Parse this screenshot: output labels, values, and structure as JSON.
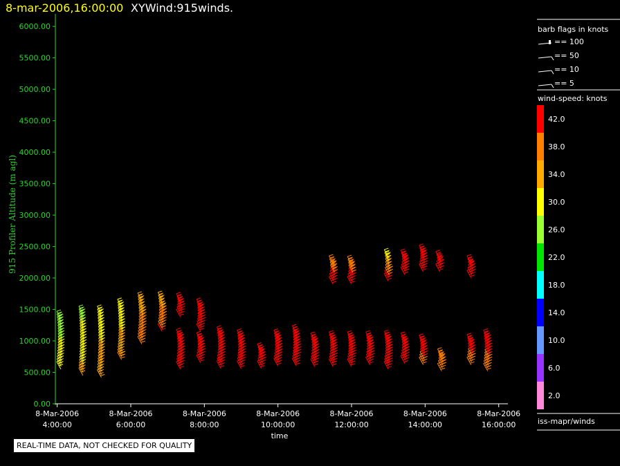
{
  "header": {
    "timestamp": "8-mar-2006,16:00:00",
    "product": "XYWind:915winds."
  },
  "legend": {
    "barb_title": "barb flags in knots",
    "barb_items": [
      "== 100",
      "== 50",
      "== 10",
      "== 5"
    ],
    "speed_title": "wind-speed: knots",
    "speed_scale": [
      {
        "label": "42.0",
        "color": "#ff0000"
      },
      {
        "label": "38.0",
        "color": "#ff7f00"
      },
      {
        "label": "34.0",
        "color": "#ffaa00"
      },
      {
        "label": "30.0",
        "color": "#ffff00"
      },
      {
        "label": "26.0",
        "color": "#99ff33"
      },
      {
        "label": "22.0",
        "color": "#00e600"
      },
      {
        "label": "18.0",
        "color": "#00ffff"
      },
      {
        "label": "14.0",
        "color": "#0000ff"
      },
      {
        "label": "10.0",
        "color": "#6699ff"
      },
      {
        "label": "6.0",
        "color": "#9933ff"
      },
      {
        "label": "2.0",
        "color": "#ff88dd"
      }
    ],
    "source": "iss-mapr/winds"
  },
  "disclaimer": "REAL-TIME DATA, NOT CHECKED FOR QUALITY",
  "chart_data": {
    "type": "scatter",
    "xlabel": "time",
    "ylabel": "915 Profiler Altitude (m agl)",
    "xlim": [
      3.95,
      16.25
    ],
    "ylim": [
      0,
      6200
    ],
    "yticks": [
      "0.00",
      "500.00",
      "1000.00",
      "1500.00",
      "2000.00",
      "2500.00",
      "3000.00",
      "3500.00",
      "4000.00",
      "4500.00",
      "5000.00",
      "5500.00",
      "6000.00"
    ],
    "xticks": [
      {
        "hour": 4,
        "date": "8-Mar-2006",
        "time": "4:00:00"
      },
      {
        "hour": 6,
        "date": "8-Mar-2006",
        "time": "6:00:00"
      },
      {
        "hour": 8,
        "date": "8-Mar-2006",
        "time": "8:00:00"
      },
      {
        "hour": 10,
        "date": "8-Mar-2006",
        "time": "10:00:00"
      },
      {
        "hour": 12,
        "date": "8-Mar-2006",
        "time": "12:00:00"
      },
      {
        "hour": 14,
        "date": "8-Mar-2006",
        "time": "14:00:00"
      },
      {
        "hour": 16,
        "date": "8-Mar-2006",
        "time": "16:00:00"
      }
    ],
    "profiles": [
      {
        "hour": 4.1,
        "bottom": 550,
        "top": 1350,
        "speed_bottom": 30,
        "speed_top": 26
      },
      {
        "hour": 4.7,
        "bottom": 450,
        "top": 1430,
        "speed_bottom": 33,
        "speed_top": 27
      },
      {
        "hour": 5.2,
        "bottom": 420,
        "top": 1430,
        "speed_bottom": 35,
        "speed_top": 29
      },
      {
        "hour": 5.75,
        "bottom": 700,
        "top": 1540,
        "speed_bottom": 36,
        "speed_top": 28
      },
      {
        "hour": 6.3,
        "bottom": 950,
        "top": 1640,
        "speed_bottom": 39,
        "speed_top": 34
      },
      {
        "hour": 6.85,
        "bottom": 1150,
        "top": 1650,
        "speed_bottom": 40,
        "speed_top": 34
      },
      {
        "hour": 7.35,
        "bottom": 550,
        "top": 1060,
        "speed_bottom": 42,
        "speed_top": 41
      },
      {
        "hour": 7.35,
        "bottom": 1380,
        "top": 1630,
        "speed_bottom": 42,
        "speed_top": 42
      },
      {
        "hour": 7.9,
        "bottom": 650,
        "top": 1010,
        "speed_bottom": 42,
        "speed_top": 42
      },
      {
        "hour": 7.9,
        "bottom": 1150,
        "top": 1540,
        "speed_bottom": 42,
        "speed_top": 42
      },
      {
        "hour": 8.45,
        "bottom": 560,
        "top": 1100,
        "speed_bottom": 42,
        "speed_top": 42
      },
      {
        "hour": 9.0,
        "bottom": 560,
        "top": 1050,
        "speed_bottom": 42,
        "speed_top": 42
      },
      {
        "hour": 9.55,
        "bottom": 560,
        "top": 830,
        "speed_bottom": 42,
        "speed_top": 42
      },
      {
        "hour": 10.0,
        "bottom": 600,
        "top": 1050,
        "speed_bottom": 40,
        "speed_top": 42
      },
      {
        "hour": 10.5,
        "bottom": 600,
        "top": 1120,
        "speed_bottom": 40,
        "speed_top": 42
      },
      {
        "hour": 11.0,
        "bottom": 590,
        "top": 1000,
        "speed_bottom": 40,
        "speed_top": 42
      },
      {
        "hour": 11.5,
        "bottom": 590,
        "top": 1020,
        "speed_bottom": 42,
        "speed_top": 42
      },
      {
        "hour": 11.5,
        "bottom": 1900,
        "top": 2230,
        "speed_bottom": 42,
        "speed_top": 38
      },
      {
        "hour": 12.0,
        "bottom": 590,
        "top": 1020,
        "speed_bottom": 42,
        "speed_top": 42
      },
      {
        "hour": 12.0,
        "bottom": 1900,
        "top": 2220,
        "speed_bottom": 42,
        "speed_top": 38
      },
      {
        "hour": 12.5,
        "bottom": 620,
        "top": 1020,
        "speed_bottom": 42,
        "speed_top": 42
      },
      {
        "hour": 13.0,
        "bottom": 550,
        "top": 1030,
        "speed_bottom": 42,
        "speed_top": 42
      },
      {
        "hour": 13.0,
        "bottom": 1950,
        "top": 2330,
        "speed_bottom": 42,
        "speed_top": 30
      },
      {
        "hour": 13.45,
        "bottom": 640,
        "top": 1000,
        "speed_bottom": 42,
        "speed_top": 42
      },
      {
        "hour": 13.45,
        "bottom": 2050,
        "top": 2320,
        "speed_bottom": 42,
        "speed_top": 42
      },
      {
        "hour": 13.95,
        "bottom": 620,
        "top": 970,
        "speed_bottom": 39,
        "speed_top": 42
      },
      {
        "hour": 13.95,
        "bottom": 2100,
        "top": 2400,
        "speed_bottom": 42,
        "speed_top": 42
      },
      {
        "hour": 14.4,
        "bottom": 2100,
        "top": 2300,
        "speed_bottom": 42,
        "speed_top": 42
      },
      {
        "hour": 14.45,
        "bottom": 520,
        "top": 750,
        "speed_bottom": 38,
        "speed_top": 38
      },
      {
        "hour": 15.25,
        "bottom": 620,
        "top": 980,
        "speed_bottom": 38,
        "speed_top": 42
      },
      {
        "hour": 15.25,
        "bottom": 2000,
        "top": 2230,
        "speed_bottom": 42,
        "speed_top": 42
      },
      {
        "hour": 15.7,
        "bottom": 520,
        "top": 1050,
        "speed_bottom": 38,
        "speed_top": 42
      }
    ]
  }
}
